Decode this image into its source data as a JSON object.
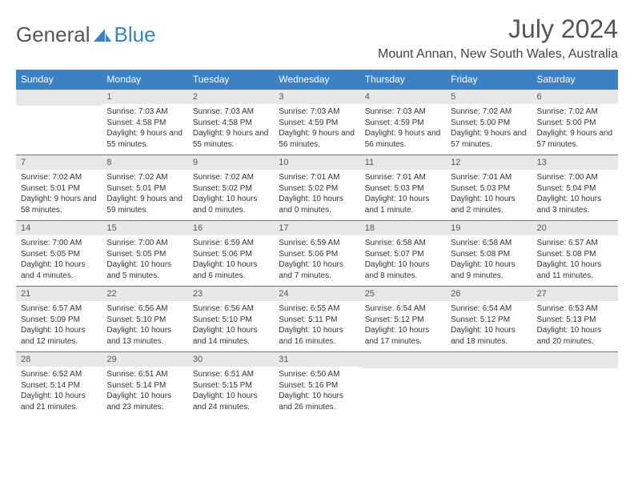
{
  "logo": {
    "text1": "General",
    "text2": "Blue"
  },
  "title": "July 2024",
  "location": "Mount Annan, New South Wales, Australia",
  "colors": {
    "accent": "#3b82c4",
    "header_bg": "#3b82c4",
    "daynum_bg": "#e8e8e8",
    "text": "#333333"
  },
  "weekdays": [
    "Sunday",
    "Monday",
    "Tuesday",
    "Wednesday",
    "Thursday",
    "Friday",
    "Saturday"
  ],
  "layout": {
    "first_weekday_index": 1,
    "days_in_month": 31
  },
  "days": {
    "1": {
      "sunrise": "7:03 AM",
      "sunset": "4:58 PM",
      "daylight": "9 hours and 55 minutes."
    },
    "2": {
      "sunrise": "7:03 AM",
      "sunset": "4:58 PM",
      "daylight": "9 hours and 55 minutes."
    },
    "3": {
      "sunrise": "7:03 AM",
      "sunset": "4:59 PM",
      "daylight": "9 hours and 56 minutes."
    },
    "4": {
      "sunrise": "7:03 AM",
      "sunset": "4:59 PM",
      "daylight": "9 hours and 56 minutes."
    },
    "5": {
      "sunrise": "7:02 AM",
      "sunset": "5:00 PM",
      "daylight": "9 hours and 57 minutes."
    },
    "6": {
      "sunrise": "7:02 AM",
      "sunset": "5:00 PM",
      "daylight": "9 hours and 57 minutes."
    },
    "7": {
      "sunrise": "7:02 AM",
      "sunset": "5:01 PM",
      "daylight": "9 hours and 58 minutes."
    },
    "8": {
      "sunrise": "7:02 AM",
      "sunset": "5:01 PM",
      "daylight": "9 hours and 59 minutes."
    },
    "9": {
      "sunrise": "7:02 AM",
      "sunset": "5:02 PM",
      "daylight": "10 hours and 0 minutes."
    },
    "10": {
      "sunrise": "7:01 AM",
      "sunset": "5:02 PM",
      "daylight": "10 hours and 0 minutes."
    },
    "11": {
      "sunrise": "7:01 AM",
      "sunset": "5:03 PM",
      "daylight": "10 hours and 1 minute."
    },
    "12": {
      "sunrise": "7:01 AM",
      "sunset": "5:03 PM",
      "daylight": "10 hours and 2 minutes."
    },
    "13": {
      "sunrise": "7:00 AM",
      "sunset": "5:04 PM",
      "daylight": "10 hours and 3 minutes."
    },
    "14": {
      "sunrise": "7:00 AM",
      "sunset": "5:05 PM",
      "daylight": "10 hours and 4 minutes."
    },
    "15": {
      "sunrise": "7:00 AM",
      "sunset": "5:05 PM",
      "daylight": "10 hours and 5 minutes."
    },
    "16": {
      "sunrise": "6:59 AM",
      "sunset": "5:06 PM",
      "daylight": "10 hours and 6 minutes."
    },
    "17": {
      "sunrise": "6:59 AM",
      "sunset": "5:06 PM",
      "daylight": "10 hours and 7 minutes."
    },
    "18": {
      "sunrise": "6:58 AM",
      "sunset": "5:07 PM",
      "daylight": "10 hours and 8 minutes."
    },
    "19": {
      "sunrise": "6:58 AM",
      "sunset": "5:08 PM",
      "daylight": "10 hours and 9 minutes."
    },
    "20": {
      "sunrise": "6:57 AM",
      "sunset": "5:08 PM",
      "daylight": "10 hours and 11 minutes."
    },
    "21": {
      "sunrise": "6:57 AM",
      "sunset": "5:09 PM",
      "daylight": "10 hours and 12 minutes."
    },
    "22": {
      "sunrise": "6:56 AM",
      "sunset": "5:10 PM",
      "daylight": "10 hours and 13 minutes."
    },
    "23": {
      "sunrise": "6:56 AM",
      "sunset": "5:10 PM",
      "daylight": "10 hours and 14 minutes."
    },
    "24": {
      "sunrise": "6:55 AM",
      "sunset": "5:11 PM",
      "daylight": "10 hours and 16 minutes."
    },
    "25": {
      "sunrise": "6:54 AM",
      "sunset": "5:12 PM",
      "daylight": "10 hours and 17 minutes."
    },
    "26": {
      "sunrise": "6:54 AM",
      "sunset": "5:12 PM",
      "daylight": "10 hours and 18 minutes."
    },
    "27": {
      "sunrise": "6:53 AM",
      "sunset": "5:13 PM",
      "daylight": "10 hours and 20 minutes."
    },
    "28": {
      "sunrise": "6:52 AM",
      "sunset": "5:14 PM",
      "daylight": "10 hours and 21 minutes."
    },
    "29": {
      "sunrise": "6:51 AM",
      "sunset": "5:14 PM",
      "daylight": "10 hours and 23 minutes."
    },
    "30": {
      "sunrise": "6:51 AM",
      "sunset": "5:15 PM",
      "daylight": "10 hours and 24 minutes."
    },
    "31": {
      "sunrise": "6:50 AM",
      "sunset": "5:16 PM",
      "daylight": "10 hours and 26 minutes."
    }
  },
  "labels": {
    "sunrise": "Sunrise: ",
    "sunset": "Sunset: ",
    "daylight": "Daylight: "
  }
}
